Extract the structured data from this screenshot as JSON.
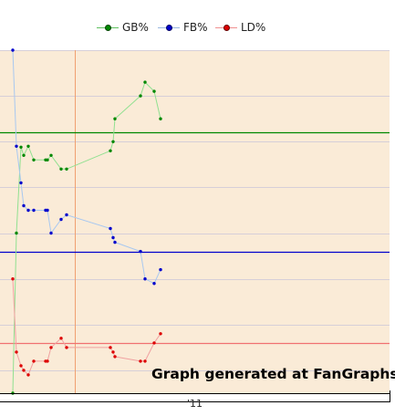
{
  "chart_data": {
    "type": "line",
    "title": "",
    "xlabel": "",
    "ylabel": "",
    "x_tick_labels": [
      "'11"
    ],
    "legend": {
      "placement": "top-center",
      "entries": [
        "GB%",
        "FB%",
        "LD%"
      ]
    },
    "ylim": [
      0,
      0.75
    ],
    "grid": true,
    "watermark": "Graph generated at FanGraphs",
    "vertical_marker_index": 6,
    "series": [
      {
        "name": "GB%",
        "color": "#008800",
        "light_color": "#90e090",
        "average": 0.571,
        "values": [
          0.0,
          0.35,
          0.538,
          0.52,
          0.54,
          0.51,
          0.51,
          0.51,
          0.52,
          0.49,
          0.49,
          0.53,
          0.55,
          0.6,
          0.65,
          0.68,
          0.66,
          0.6
        ]
      },
      {
        "name": "FB%",
        "color": "#0000cc",
        "light_color": "#a8c8f0",
        "average": 0.31,
        "values": [
          0.75,
          0.54,
          0.46,
          0.41,
          0.4,
          0.4,
          0.4,
          0.4,
          0.35,
          0.38,
          0.39,
          0.36,
          0.34,
          0.33,
          0.31,
          0.25,
          0.24,
          0.27
        ]
      },
      {
        "name": "LD%",
        "color": "#dd0000",
        "light_color": "#f0a0a0",
        "average": 0.11,
        "values": [
          0.25,
          0.09,
          0.06,
          0.05,
          0.04,
          0.07,
          0.07,
          0.07,
          0.1,
          0.12,
          0.1,
          0.1,
          0.09,
          0.08,
          0.07,
          0.07,
          0.11,
          0.13
        ]
      }
    ]
  }
}
